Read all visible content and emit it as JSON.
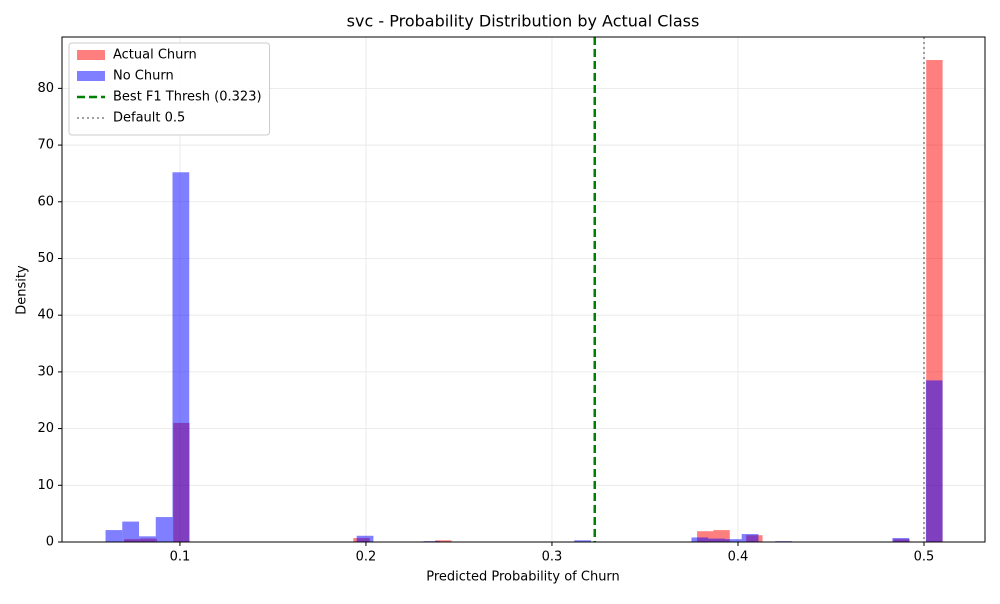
{
  "chart_data": {
    "type": "histogram",
    "title": "svc - Probability Distribution by Actual Class",
    "x_label": "Predicted Probability of Churn",
    "y_label": "Density",
    "xlim": [
      0.0366,
      0.5328
    ],
    "ylim": [
      0,
      89.06
    ],
    "xticks": [
      0.1,
      0.2,
      0.3,
      0.4,
      0.5
    ],
    "yticks": [
      0,
      10,
      20,
      30,
      40,
      50,
      60,
      70,
      80
    ],
    "grid": true,
    "legend": "upper left",
    "series": [
      {
        "name": "Actual Churn",
        "color": "#ff0000",
        "opacity": 0.5,
        "bins": [
          0.07,
          0.0788,
          0.0876,
          0.0964,
          0.1052,
          0.114,
          0.1228,
          0.1316,
          0.1404,
          0.1492,
          0.158,
          0.1668,
          0.1756,
          0.1844,
          0.1932,
          0.202,
          0.2108,
          0.2196,
          0.2284,
          0.2372,
          0.246,
          0.2548,
          0.2636,
          0.2724,
          0.2812,
          0.29,
          0.2988,
          0.3076,
          0.3164,
          0.3252,
          0.334,
          0.3428,
          0.3516,
          0.3604,
          0.3692,
          0.378,
          0.3868,
          0.3956,
          0.4044,
          0.4132,
          0.422,
          0.4308,
          0.4396,
          0.4484,
          0.4572,
          0.466,
          0.4748,
          0.4836,
          0.4924,
          0.5012,
          0.51
        ],
        "values": [
          0.5,
          0.6,
          0,
          21,
          0,
          0,
          0,
          0,
          0,
          0,
          0,
          0,
          0,
          0,
          0.7,
          0,
          0,
          0,
          0,
          0.3,
          0,
          0,
          0,
          0,
          0,
          0,
          0,
          0,
          0,
          0,
          0,
          0,
          0,
          0,
          0,
          1.9,
          2.1,
          0,
          1.2,
          0,
          0,
          0,
          0,
          0,
          0,
          0,
          0,
          0.5,
          0,
          85
        ]
      },
      {
        "name": "No Churn",
        "color": "#0000ff",
        "opacity": 0.5,
        "bins": [
          0.06,
          0.069,
          0.078,
          0.087,
          0.096,
          0.105,
          0.114,
          0.123,
          0.132,
          0.141,
          0.15,
          0.159,
          0.168,
          0.177,
          0.186,
          0.195,
          0.204,
          0.213,
          0.222,
          0.231,
          0.24,
          0.249,
          0.258,
          0.267,
          0.276,
          0.285,
          0.294,
          0.303,
          0.312,
          0.321,
          0.33,
          0.339,
          0.348,
          0.357,
          0.366,
          0.375,
          0.384,
          0.393,
          0.402,
          0.411,
          0.42,
          0.429,
          0.438,
          0.447,
          0.456,
          0.465,
          0.474,
          0.483,
          0.492,
          0.501,
          0.51
        ],
        "values": [
          2.1,
          3.6,
          1.0,
          4.4,
          65.2,
          0,
          0,
          0,
          0,
          0,
          0,
          0,
          0,
          0,
          0,
          1.1,
          0,
          0,
          0,
          0.15,
          0,
          0,
          0,
          0,
          0,
          0,
          0,
          0,
          0.3,
          0,
          0,
          0,
          0,
          0,
          0,
          0.8,
          0.6,
          0.5,
          1.4,
          0,
          0.15,
          0,
          0,
          0,
          0,
          0,
          0,
          0.7,
          0,
          28.5
        ]
      }
    ],
    "vlines": [
      {
        "name": "Best F1 Thresh (0.323)",
        "x": 0.323,
        "color": "#008000",
        "style": "dashed"
      },
      {
        "name": "Default 0.5",
        "x": 0.5,
        "color": "#808080",
        "style": "dotted"
      }
    ]
  }
}
